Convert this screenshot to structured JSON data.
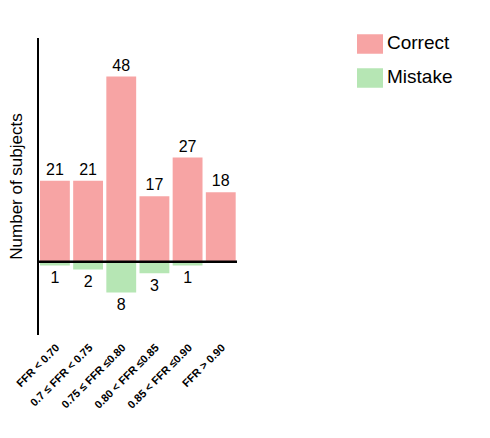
{
  "chart_data": {
    "type": "bar",
    "y_label": "Number of subjects",
    "categories": [
      "FFR < 0.70",
      "0.7 ≤ FFR < 0.75",
      "0.75 ≤ FFR ≤0.80",
      "0.80 < FFR ≤0.85",
      "0.85 < FFR ≤0.90",
      "FFR > 0.90"
    ],
    "series": [
      {
        "name": "Correct",
        "color": "#f7a4a4",
        "values": [
          21,
          21,
          48,
          17,
          27,
          18
        ]
      },
      {
        "name": "Mistake",
        "color": "#b6e6b4",
        "values": [
          1,
          2,
          8,
          3,
          1,
          null
        ],
        "axis": "y2"
      }
    ],
    "ylim": [
      -19,
      58
    ],
    "y2lim": [
      -58,
      19
    ],
    "data_labels": true,
    "tick_labels": "x",
    "legend": "top-right",
    "grid": false
  }
}
